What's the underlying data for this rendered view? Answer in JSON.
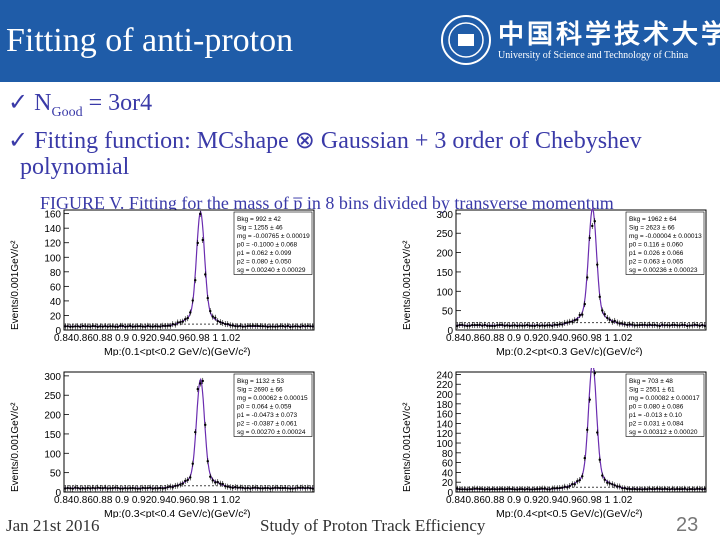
{
  "slide": {
    "title": "Fitting of anti-proton",
    "logo_cn": "中国科学技术大学",
    "logo_en": "University of Science and Technology of China",
    "bullet1": "N",
    "bullet1_sub": "Good",
    "bullet1_rest": " = 3or4",
    "bullet2_line1": "Fitting function: MCshape ⊗ Gaussian + 3 order of Chebyshev",
    "bullet2_line2": "polynomial",
    "figure_caption": "FIGURE V. Fitting for the mass of p̅ in 8 bins divided by transverse momentum",
    "footer_left": "Jan 21st 2016",
    "footer_center": "Study of Proton Track Efficiency",
    "page_number": "23"
  },
  "chart_data": [
    {
      "type": "line",
      "ylabel": "Events/0.001GeV/c²",
      "xlabel": "Mp:(0.1<pt<0.2 GeV/c)(GeV/c²)",
      "xlim": [
        0.84,
        1.02
      ],
      "ylim": [
        0,
        165
      ],
      "yticks": [
        0,
        20,
        40,
        60,
        80,
        100,
        120,
        140,
        160
      ],
      "xtick_text": "0.840.860.88 0.9 0.920.940.960.98 1 1.02",
      "peak": 145,
      "baseline": 5,
      "stats": [
        "Bkg = 992 ± 42",
        "Sig = 1255 ± 46",
        "mg = -0.00765 ± 0.00019",
        "p0 = -0.1000 ± 0.068",
        "p1 = 0.062 ± 0.099",
        "p2 = 0.080 ± 0.050",
        "sg = 0.00240 ± 0.00029"
      ]
    },
    {
      "type": "line",
      "ylabel": "Events/0.001GeV/c²",
      "xlabel": "Mp:(0.2<pt<0.3 GeV/c)(GeV/c²)",
      "xlim": [
        0.84,
        1.02
      ],
      "ylim": [
        0,
        310
      ],
      "yticks": [
        0,
        50,
        100,
        150,
        200,
        250,
        300
      ],
      "xtick_text": "0.840.860.88 0.9 0.920.940.960.98 1 1.02",
      "peak": 280,
      "baseline": 12,
      "stats": [
        "Bkg = 1962 ± 64",
        "Sig = 2623 ± 66",
        "mg = -0.00004 ± 0.00013",
        "p0 = 0.116 ± 0.060",
        "p1 = 0.026 ± 0.066",
        "p2 = 0.063 ± 0.065",
        "sg = 0.00236 ± 0.00023"
      ]
    },
    {
      "type": "line",
      "ylabel": "Events/0.001GeV/c²",
      "xlabel": "Mp:(0.3<pt<0.4 GeV/c)(GeV/c²)",
      "xlim": [
        0.84,
        1.02
      ],
      "ylim": [
        0,
        310
      ],
      "yticks": [
        0,
        50,
        100,
        150,
        200,
        250,
        300
      ],
      "xtick_text": "0.840.860.88 0.9 0.920.940.960.98 1 1.02",
      "peak": 260,
      "baseline": 10,
      "stats": [
        "Bkg = 1132 ± 53",
        "Sig = 2690 ± 66",
        "mg = 0.00062 ± 0.00015",
        "p0 = 0.064 ± 0.059",
        "p1 = -0.0473 ± 0.073",
        "p2 = -0.0387 ± 0.061",
        "sg = 0.00270 ± 0.00024"
      ]
    },
    {
      "type": "line",
      "ylabel": "Events/0.001GeV/c²",
      "xlabel": "Mp:(0.4<pt<0.5 GeV/c)(GeV/c²)",
      "xlim": [
        0.84,
        1.02
      ],
      "ylim": [
        0,
        245
      ],
      "yticks": [
        0,
        20,
        40,
        60,
        80,
        100,
        120,
        140,
        160,
        180,
        200,
        220,
        240
      ],
      "xtick_text": "0.840.860.88 0.9 0.920.940.960.98 1 1.02",
      "peak": 235,
      "baseline": 6,
      "stats": [
        "Bkg = 703 ± 48",
        "Sig = 2551 ± 61",
        "mg = 0.00082 ± 0.00017",
        "p0 = 0.080 ± 0.086",
        "p1 = -0.013 ± 0.10",
        "p2 = 0.031 ± 0.084",
        "sg = 0.00312 ± 0.00020"
      ]
    }
  ]
}
